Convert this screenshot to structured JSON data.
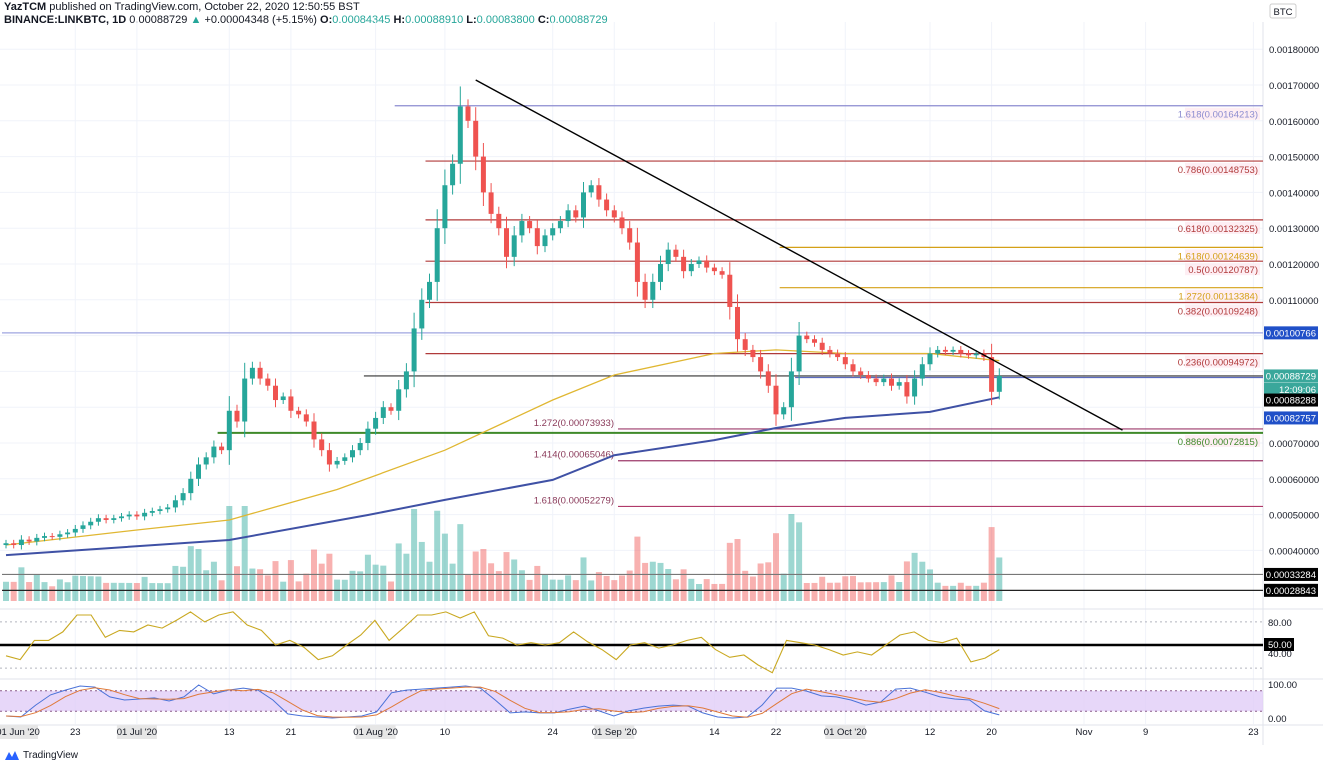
{
  "header": {
    "author": "YazTCM",
    "published": "published on TradingView.com, October 22, 2020 12:50:55 BST",
    "symbol": "BINANCE:LINKBTC, 1D",
    "last": "0.00088729",
    "change": "+0.00004348 (+5.15%)",
    "o_label": "O:",
    "o": "0.00084345",
    "h_label": "H:",
    "h": "0.00088910",
    "l_label": "L:",
    "l": "0.00083800",
    "c_label": "C:",
    "c": "0.00088729"
  },
  "footer": {
    "brand": "TradingView"
  },
  "colors": {
    "up": "#26a69a",
    "down": "#ef5350",
    "ma_fast": "#e0b732",
    "ma_slow": "#3f51a5",
    "trendline": "#000000"
  },
  "chart_data": {
    "type": "candlestick",
    "currency_label": "BTC",
    "start_date": "2020-06-14",
    "first_open": 0.000415,
    "closes": [
      0.00042,
      0.000415,
      0.00043,
      0.000425,
      0.000435,
      0.00044,
      0.000438,
      0.000445,
      0.00045,
      0.00046,
      0.00047,
      0.00048,
      0.00049,
      0.000485,
      0.00049,
      0.000495,
      0.0005,
      0.000495,
      0.000505,
      0.00051,
      0.000515,
      0.00052,
      0.00054,
      0.00056,
      0.0006,
      0.00064,
      0.00066,
      0.00069,
      0.00068,
      0.00079,
      0.00076,
      0.00088,
      0.00091,
      0.00088,
      0.00086,
      0.00082,
      0.00083,
      0.00079,
      0.00078,
      0.00076,
      0.00071,
      0.00068,
      0.00064,
      0.00065,
      0.00066,
      0.00068,
      0.0007,
      0.00074,
      0.00077,
      0.0008,
      0.00079,
      0.00085,
      0.0009,
      0.00102,
      0.0011,
      0.00115,
      0.0013,
      0.00142,
      0.00148,
      0.00164,
      0.0016,
      0.0015,
      0.0014,
      0.00134,
      0.0013,
      0.00122,
      0.00128,
      0.00132,
      0.0013,
      0.00125,
      0.00128,
      0.0013,
      0.00132,
      0.00135,
      0.00133,
      0.0014,
      0.00142,
      0.00138,
      0.00135,
      0.00133,
      0.0013,
      0.00126,
      0.00115,
      0.0011,
      0.00115,
      0.0012,
      0.00124,
      0.00122,
      0.00118,
      0.0012,
      0.00121,
      0.00119,
      0.00118,
      0.00117,
      0.00108,
      0.00099,
      0.00096,
      0.00094,
      0.0009,
      0.00086,
      0.00078,
      0.0008,
      0.0009,
      0.001,
      0.00099,
      0.00098,
      0.00096,
      0.00095,
      0.00094,
      0.00092,
      0.0009,
      0.00089,
      0.00088,
      0.00087,
      0.00088,
      0.00086,
      0.00087,
      0.00083,
      0.00088,
      0.00092,
      0.00095,
      0.00096,
      0.000955,
      0.00096,
      0.00095,
      0.000945,
      0.00095,
      0.00094,
      0.000843,
      0.00088729
    ],
    "ylim": [
      0.0003,
      0.0018
    ],
    "price_ticks": [
      "0.00180000",
      "0.00170000",
      "0.00160000",
      "0.00150000",
      "0.00140000",
      "0.00130000",
      "0.00120000",
      "0.00110000",
      "0.00070000",
      "0.00060000",
      "0.00050000",
      "0.00040000"
    ],
    "time_ticks": [
      {
        "label": "01 Jun '20",
        "date": null
      },
      {
        "label": "23",
        "date": "2020-06-23"
      },
      {
        "label": "01 Jul '20",
        "date": "2020-07-01"
      },
      {
        "label": "13",
        "date": "2020-07-13"
      },
      {
        "label": "21",
        "date": "2020-07-21"
      },
      {
        "label": "01 Aug '20",
        "date": "2020-08-01"
      },
      {
        "label": "10",
        "date": "2020-08-10"
      },
      {
        "label": "24",
        "date": "2020-08-24"
      },
      {
        "label": "01 Sep '20",
        "date": "2020-09-01"
      },
      {
        "label": "14",
        "date": "2020-09-14"
      },
      {
        "label": "22",
        "date": "2020-09-22"
      },
      {
        "label": "01 Oct '20",
        "date": "2020-10-01"
      },
      {
        "label": "12",
        "date": "2020-10-12"
      },
      {
        "label": "20",
        "date": "2020-10-20"
      },
      {
        "label": "Nov",
        "date": "2020-11-01"
      },
      {
        "label": "9",
        "date": "2020-11-09"
      },
      {
        "label": "23",
        "date": "2020-11-23"
      }
    ],
    "ma_fast": [
      [
        "2020-06-14",
        0.000415
      ],
      [
        "2020-07-01",
        0.000457
      ],
      [
        "2020-07-13",
        0.000485
      ],
      [
        "2020-07-27",
        0.00057
      ],
      [
        "2020-08-10",
        0.00068
      ],
      [
        "2020-08-24",
        0.00082
      ],
      [
        "2020-09-01",
        0.00089
      ],
      [
        "2020-09-14",
        0.00095
      ],
      [
        "2020-09-22",
        0.00096
      ],
      [
        "2020-10-01",
        0.00095
      ],
      [
        "2020-10-12",
        0.00095
      ],
      [
        "2020-10-21",
        0.00093
      ]
    ],
    "ma_slow": [
      [
        "2020-06-14",
        0.000387
      ],
      [
        "2020-07-13",
        0.000429
      ],
      [
        "2020-07-31",
        0.000499
      ],
      [
        "2020-08-10",
        0.000541
      ],
      [
        "2020-08-24",
        0.000597
      ],
      [
        "2020-09-01",
        0.000666
      ],
      [
        "2020-09-14",
        0.000708
      ],
      [
        "2020-09-22",
        0.000742
      ],
      [
        "2020-10-01",
        0.00077
      ],
      [
        "2020-10-12",
        0.000787
      ],
      [
        "2020-10-21",
        0.00082757
      ]
    ],
    "trendline": [
      [
        "2020-08-14",
        0.001714
      ],
      [
        "2020-11-06",
        0.000736
      ]
    ],
    "levels": [
      {
        "label": "1.618(0.00164213)",
        "price": 0.00164213,
        "from": "2020-08-04",
        "color": "#8c8cd0",
        "side": "right"
      },
      {
        "label": "0.786(0.00148753)",
        "price": 0.00148753,
        "from": "2020-08-08",
        "color": "#b03a3a",
        "side": "right"
      },
      {
        "label": "0.618(0.00132325)",
        "price": 0.00132325,
        "from": "2020-08-08",
        "color": "#b03a3a",
        "side": "right"
      },
      {
        "label": "1.618(0.00124639)",
        "price": 0.00124639,
        "from": "2020-09-23",
        "color": "#d4a017",
        "side": "right"
      },
      {
        "label": "0.5(0.00120787)",
        "price": 0.00120787,
        "from": "2020-08-08",
        "color": "#b03a3a",
        "side": "right"
      },
      {
        "label": "1.272(0.00113384)",
        "price": 0.00113384,
        "from": "2020-09-23",
        "color": "#d4a017",
        "side": "right"
      },
      {
        "label": "0.382(0.00109248)",
        "price": 0.00109248,
        "from": "2020-08-08",
        "color": "#b03a3a",
        "side": "right"
      },
      {
        "label": "",
        "price": 0.00100766,
        "from": "2020-06-14",
        "color": "#9fa6e0",
        "side": "right"
      },
      {
        "label": "0.236(0.00094972)",
        "price": 0.00094972,
        "from": "2020-08-08",
        "color": "#b03a3a",
        "side": "right"
      },
      {
        "label": "",
        "price": 0.00088729,
        "from": "2020-07-31",
        "color": "#333333",
        "side": "right"
      },
      {
        "label": "",
        "price": 0.00088288,
        "from": "2020-09-25",
        "color": "#5b6bc0",
        "side": "right"
      },
      {
        "label": "1.272(0.00073933)",
        "price": 0.00073933,
        "from": "2020-09-02",
        "color": "#9c3a6a",
        "side": "left"
      },
      {
        "label": "0.886(0.00072815)",
        "price": 0.00072815,
        "from": "2020-07-12",
        "color": "#3f8a2a",
        "side": "right"
      },
      {
        "label": "1.414(0.00065046)",
        "price": 0.00065046,
        "from": "2020-09-02",
        "color": "#9c3a6a",
        "side": "left"
      },
      {
        "label": "1.618(0.00052279)",
        "price": 0.00052279,
        "from": "2020-09-02",
        "color": "#b03a6a",
        "side": "left"
      },
      {
        "label": "",
        "price": 0.00033284,
        "from": "2020-06-14",
        "color": "#777777",
        "side": "right"
      },
      {
        "label": "",
        "price": 0.00028843,
        "from": "2020-06-14",
        "color": "#222222",
        "side": "right"
      }
    ],
    "axis_badges": [
      {
        "text": "0.00100766",
        "price": 0.00100766,
        "bg": "#2050c8",
        "fg": "#ffffff"
      },
      {
        "text": "0.00088729",
        "price": 0.00088729,
        "bg": "#3aa79b",
        "fg": "#ffffff"
      },
      {
        "text": "12:09:06",
        "price": 0.00085,
        "bg": "#3aa79b",
        "fg": "#ffffff"
      },
      {
        "text": "0.00088288",
        "price": 0.00082,
        "bg": "#000000",
        "fg": "#ffffff"
      },
      {
        "text": "0.00082757",
        "price": 0.00077,
        "bg": "#2050c8",
        "fg": "#ffffff"
      },
      {
        "text": "0.00033284",
        "price": 0.00033284,
        "bg": "#000000",
        "fg": "#ffffff"
      },
      {
        "text": "0.00028843",
        "price": 0.00028843,
        "bg": "#000000",
        "fg": "#ffffff"
      }
    ],
    "rsi": {
      "ticks": [
        "80.00",
        "50.00",
        "40.00"
      ],
      "highlight": "50.00",
      "values": [
        36,
        31,
        56,
        56,
        67,
        89,
        89,
        60,
        69,
        67,
        76,
        72,
        82,
        93,
        80,
        89,
        93,
        76,
        69,
        50,
        56,
        47,
        31,
        36,
        50,
        63,
        82,
        56,
        72,
        89,
        89,
        93,
        85,
        93,
        62,
        59,
        50,
        53,
        50,
        53,
        67,
        54,
        44,
        31,
        50,
        53,
        46,
        50,
        56,
        60,
        44,
        34,
        37,
        24,
        14,
        56,
        53,
        50,
        44,
        37,
        41,
        37,
        50,
        63,
        67,
        56,
        53,
        59,
        28,
        33,
        44
      ]
    },
    "stoch": {
      "ticks": [
        "100.00",
        "0.00"
      ],
      "band": [
        20,
        80
      ],
      "k": [
        6,
        3,
        38,
        68,
        82,
        94,
        91,
        62,
        53,
        56,
        59,
        50,
        62,
        97,
        71,
        82,
        88,
        82,
        53,
        12,
        6,
        3,
        0,
        3,
        6,
        18,
        74,
        82,
        85,
        88,
        91,
        94,
        88,
        53,
        15,
        18,
        15,
        15,
        26,
        35,
        21,
        6,
        21,
        29,
        35,
        38,
        35,
        15,
        3,
        0,
        3,
        38,
        88,
        88,
        79,
        65,
        62,
        53,
        38,
        47,
        85,
        88,
        76,
        62,
        56,
        53,
        21,
        9
      ]
    }
  }
}
